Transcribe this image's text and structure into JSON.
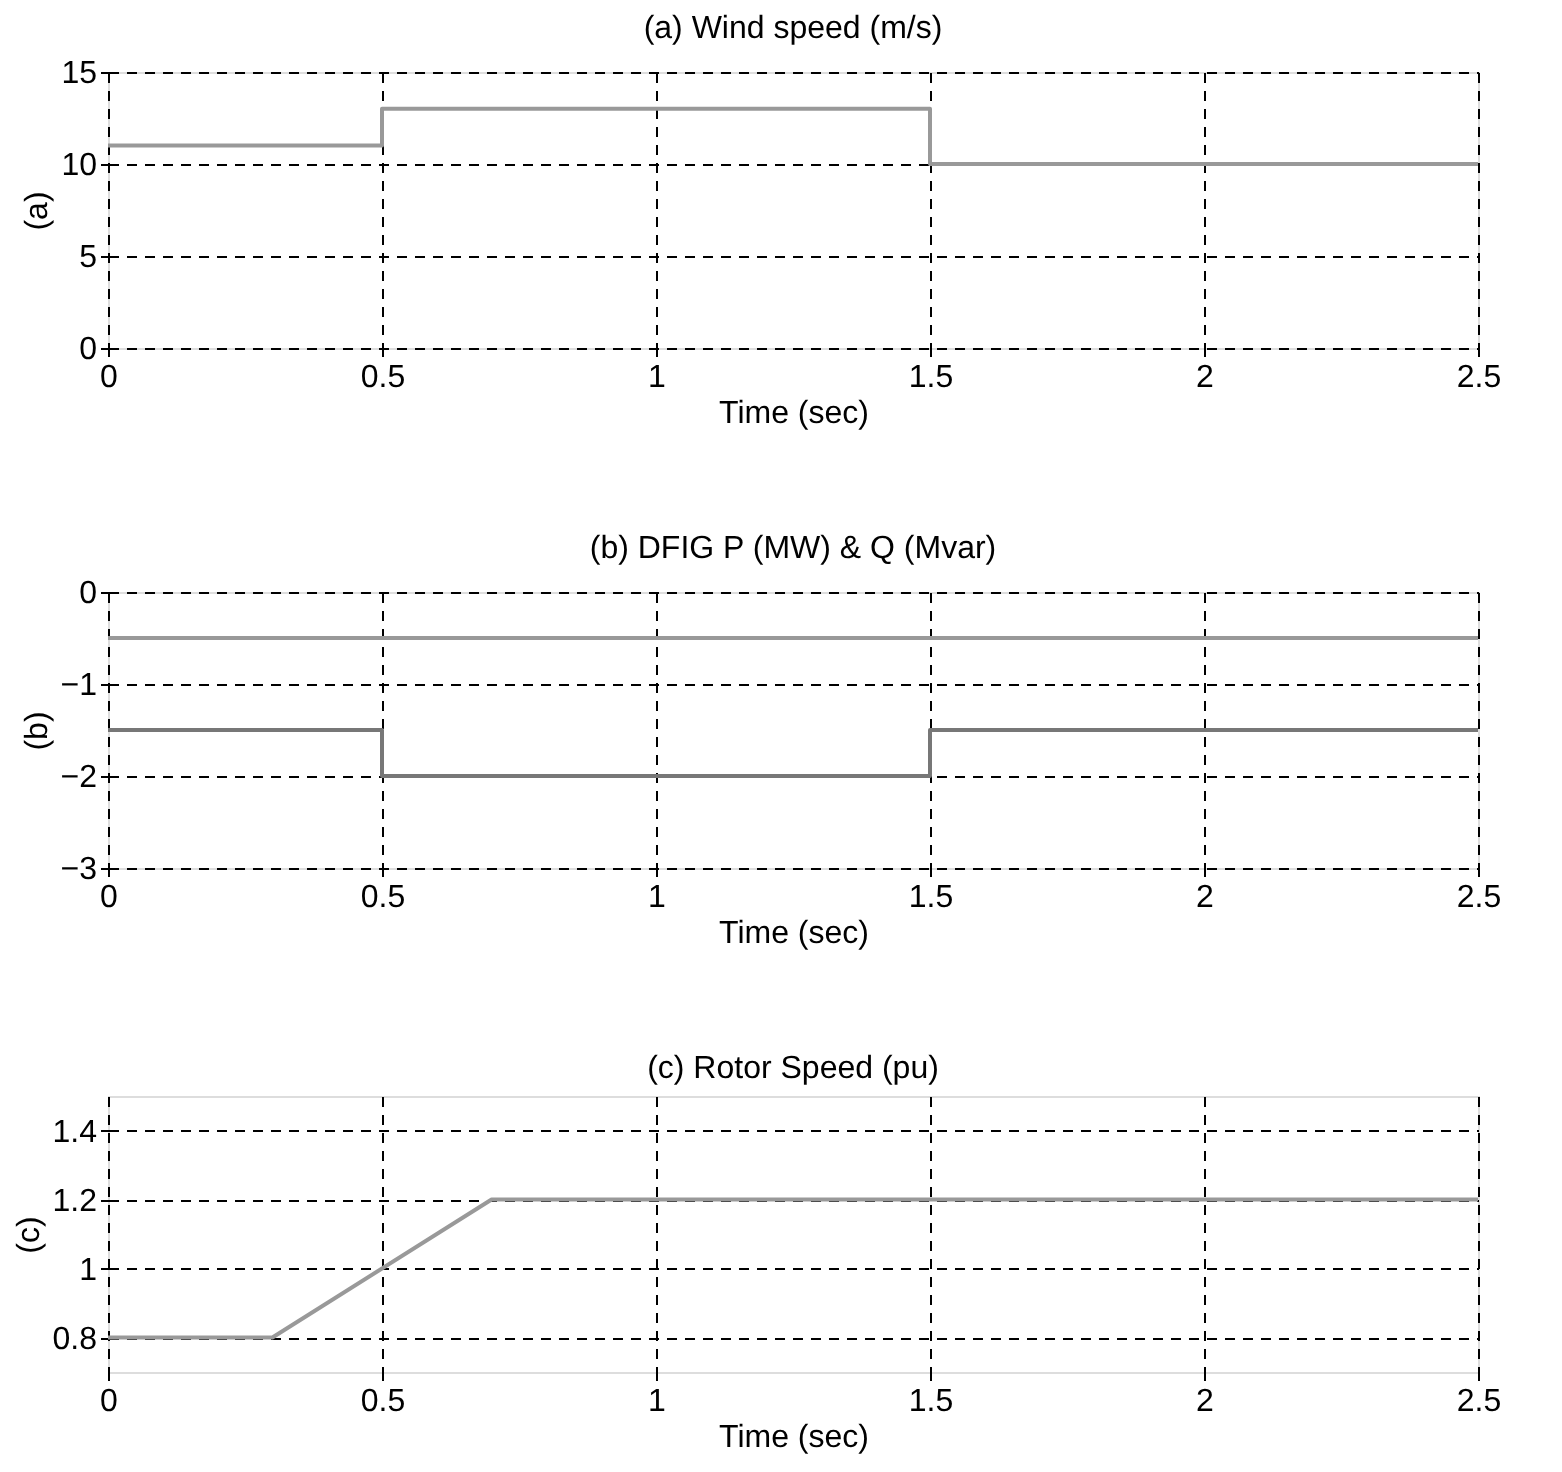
{
  "chart_data": [
    {
      "type": "step",
      "title": "(a) Wind speed (m/s)",
      "xlabel": "Time (sec)",
      "ylabel": "(a)",
      "xlim": [
        0,
        2.5
      ],
      "xticks": [
        0,
        0.5,
        1,
        1.5,
        2,
        2.5
      ],
      "ylim": [
        0,
        15
      ],
      "yticks": [
        0,
        5,
        10,
        15
      ],
      "grid": true,
      "line_style": "solid",
      "series": [
        {
          "color": "#999999",
          "x": [
            0,
            0.5,
            1.5,
            2.5
          ],
          "values": [
            11,
            13,
            10,
            10
          ]
        }
      ]
    },
    {
      "type": "step",
      "title": "(b) DFIG P (MW) & Q (Mvar)",
      "xlabel": "Time (sec)",
      "ylabel": "(b)",
      "xlim": [
        0,
        2.5
      ],
      "xticks": [
        0,
        0.5,
        1,
        1.5,
        2,
        2.5
      ],
      "ylim": [
        -3,
        0
      ],
      "yticks": [
        -3,
        -2,
        -1,
        0
      ],
      "grid": true,
      "line_style": "solid",
      "series": [
        {
          "color": "#999999",
          "x": [
            0,
            2.5
          ],
          "values": [
            -0.5,
            -0.5
          ]
        },
        {
          "color": "#777777",
          "x": [
            0,
            0.5,
            1.5,
            2.5
          ],
          "values": [
            -1.5,
            -2,
            -1.5,
            -1.5
          ]
        }
      ]
    },
    {
      "type": "line",
      "title": "(c) Rotor Speed (pu)",
      "xlabel": "Time (sec)",
      "ylabel": "(c)",
      "xlim": [
        0,
        2.5
      ],
      "xticks": [
        0,
        0.5,
        1,
        1.5,
        2,
        2.5
      ],
      "ylim": [
        0.7,
        1.5
      ],
      "yticks": [
        0.8,
        1,
        1.2,
        1.4
      ],
      "grid": true,
      "line_style": "solid",
      "series": [
        {
          "color": "#999999",
          "x": [
            0,
            0.3,
            0.7,
            2.5
          ],
          "values": [
            0.8,
            0.8,
            1.2,
            1.2
          ]
        }
      ]
    }
  ]
}
